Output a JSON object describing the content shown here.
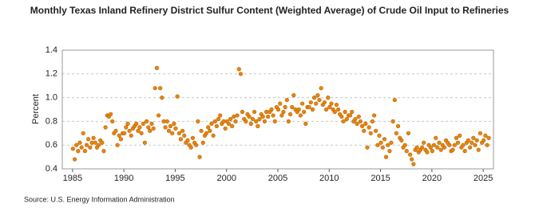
{
  "chart_data": {
    "type": "scatter",
    "title": "Monthly Texas Inland Refinery District Sulfur Content (Weighted Average) of Crude Oil Input to Refineries",
    "y_label": "Percent",
    "source": "Source: U.S. Energy Information Administration",
    "color": "#e8850c",
    "xlim": [
      1984,
      2026
    ],
    "xticks": [
      1985,
      1990,
      1995,
      2000,
      2005,
      2010,
      2015,
      2020,
      2025
    ],
    "ylim": [
      0.4,
      1.4
    ],
    "yticks": [
      0.4,
      0.6,
      0.8,
      {
        "value": 1,
        "label": "1.0"
      },
      1.2,
      1.4
    ],
    "grid": true,
    "x": [
      1985.04,
      1985.21,
      1985.38,
      1985.54,
      1985.71,
      1985.88,
      1986.04,
      1986.21,
      1986.38,
      1986.54,
      1986.71,
      1986.88,
      1987.04,
      1987.21,
      1987.38,
      1987.54,
      1987.71,
      1987.88,
      1988.04,
      1988.21,
      1988.38,
      1988.54,
      1988.71,
      1988.88,
      1989.04,
      1989.21,
      1989.38,
      1989.54,
      1989.71,
      1989.88,
      1990.04,
      1990.21,
      1990.38,
      1990.54,
      1990.71,
      1990.88,
      1991.04,
      1991.21,
      1991.38,
      1991.54,
      1991.71,
      1991.88,
      1992.04,
      1992.21,
      1992.38,
      1992.54,
      1992.71,
      1992.88,
      1993.04,
      1993.21,
      1993.38,
      1993.54,
      1993.71,
      1993.88,
      1994.04,
      1994.21,
      1994.38,
      1994.54,
      1994.71,
      1994.88,
      1995.04,
      1995.21,
      1995.38,
      1995.54,
      1995.71,
      1995.88,
      1996.04,
      1996.21,
      1996.38,
      1996.54,
      1996.71,
      1996.88,
      1997.04,
      1997.21,
      1997.38,
      1997.54,
      1997.71,
      1997.88,
      1998.04,
      1998.21,
      1998.38,
      1998.54,
      1998.71,
      1998.88,
      1999.04,
      1999.21,
      1999.38,
      1999.54,
      1999.71,
      1999.88,
      2000.04,
      2000.21,
      2000.38,
      2000.54,
      2000.71,
      2000.88,
      2001.04,
      2001.21,
      2001.38,
      2001.54,
      2001.71,
      2001.88,
      2002.04,
      2002.21,
      2002.38,
      2002.54,
      2002.71,
      2002.88,
      2003.04,
      2003.21,
      2003.38,
      2003.54,
      2003.71,
      2003.88,
      2004.04,
      2004.21,
      2004.38,
      2004.54,
      2004.71,
      2004.88,
      2005.04,
      2005.21,
      2005.38,
      2005.54,
      2005.71,
      2005.88,
      2006.04,
      2006.21,
      2006.38,
      2006.54,
      2006.71,
      2006.88,
      2007.04,
      2007.21,
      2007.38,
      2007.54,
      2007.71,
      2007.88,
      2008.04,
      2008.21,
      2008.38,
      2008.54,
      2008.71,
      2008.88,
      2009.04,
      2009.21,
      2009.38,
      2009.54,
      2009.71,
      2009.88,
      2010.04,
      2010.21,
      2010.38,
      2010.54,
      2010.71,
      2010.88,
      2011.04,
      2011.21,
      2011.38,
      2011.54,
      2011.71,
      2011.88,
      2012.04,
      2012.21,
      2012.38,
      2012.54,
      2012.71,
      2012.88,
      2013.04,
      2013.21,
      2013.38,
      2013.54,
      2013.71,
      2013.88,
      2014.04,
      2014.21,
      2014.38,
      2014.54,
      2014.71,
      2014.88,
      2015.04,
      2015.21,
      2015.38,
      2015.54,
      2015.71,
      2015.88,
      2016.04,
      2016.21,
      2016.38,
      2016.54,
      2016.71,
      2016.88,
      2017.04,
      2017.21,
      2017.38,
      2017.54,
      2017.71,
      2017.88,
      2018.04,
      2018.21,
      2018.38,
      2018.54,
      2018.71,
      2018.88,
      2019.04,
      2019.21,
      2019.38,
      2019.54,
      2019.71,
      2019.88,
      2020.04,
      2020.21,
      2020.38,
      2020.54,
      2020.71,
      2020.88,
      2021.04,
      2021.21,
      2021.38,
      2021.54,
      2021.71,
      2021.88,
      2022.04,
      2022.21,
      2022.38,
      2022.54,
      2022.71,
      2022.88,
      2023.04,
      2023.21,
      2023.38,
      2023.54,
      2023.71,
      2023.88,
      2024.04,
      2024.21,
      2024.38,
      2024.54,
      2024.71,
      2024.88,
      2025.04,
      2025.21,
      2025.38,
      2025.54
    ],
    "values": [
      0.57,
      0.48,
      0.6,
      0.55,
      0.62,
      0.58,
      0.7,
      0.55,
      0.6,
      0.65,
      0.58,
      0.62,
      0.66,
      0.62,
      0.58,
      0.6,
      0.64,
      0.62,
      0.55,
      0.75,
      0.85,
      0.84,
      0.86,
      0.8,
      0.7,
      0.72,
      0.6,
      0.68,
      0.65,
      0.7,
      0.7,
      0.75,
      0.78,
      0.72,
      0.68,
      0.74,
      0.76,
      0.78,
      0.72,
      0.75,
      0.7,
      0.78,
      0.62,
      0.8,
      0.75,
      0.72,
      0.78,
      0.74,
      1.08,
      1.25,
      0.85,
      1.08,
      1.0,
      0.8,
      0.75,
      0.8,
      0.72,
      0.76,
      0.7,
      0.78,
      0.74,
      1.01,
      0.7,
      0.65,
      0.72,
      0.68,
      0.62,
      0.64,
      0.6,
      0.58,
      0.66,
      0.62,
      0.6,
      0.8,
      0.5,
      0.72,
      0.62,
      0.68,
      0.7,
      0.75,
      0.72,
      0.78,
      0.68,
      0.8,
      0.76,
      0.82,
      0.85,
      0.78,
      0.8,
      0.74,
      0.8,
      0.78,
      0.82,
      0.76,
      0.84,
      0.8,
      0.85,
      1.24,
      1.2,
      0.88,
      0.82,
      0.8,
      0.86,
      0.84,
      0.78,
      0.82,
      0.88,
      0.8,
      0.76,
      0.82,
      0.86,
      0.84,
      0.8,
      0.88,
      0.84,
      0.88,
      0.9,
      0.85,
      0.8,
      0.92,
      0.9,
      0.95,
      0.85,
      0.88,
      0.92,
      0.98,
      0.8,
      0.86,
      0.92,
      1.02,
      0.9,
      0.88,
      0.9,
      0.85,
      0.95,
      0.88,
      0.78,
      0.92,
      0.92,
      0.96,
      0.9,
      1.0,
      0.95,
      1.02,
      0.98,
      1.08,
      0.94,
      0.96,
      0.9,
      1.0,
      0.92,
      0.95,
      0.9,
      0.88,
      0.94,
      0.9,
      0.86,
      0.84,
      0.8,
      0.88,
      0.82,
      0.85,
      0.85,
      0.88,
      0.8,
      0.82,
      0.78,
      0.84,
      0.8,
      0.76,
      0.72,
      0.78,
      0.58,
      0.75,
      0.7,
      0.8,
      0.85,
      0.72,
      0.6,
      0.68,
      0.62,
      0.58,
      0.65,
      0.5,
      0.6,
      0.55,
      0.62,
      0.8,
      0.98,
      0.7,
      0.76,
      0.66,
      0.64,
      0.58,
      0.6,
      0.55,
      0.7,
      0.52,
      0.48,
      0.44,
      0.56,
      0.58,
      0.54,
      0.56,
      0.58,
      0.62,
      0.56,
      0.54,
      0.6,
      0.58,
      0.55,
      0.6,
      0.66,
      0.58,
      0.62,
      0.56,
      0.6,
      0.58,
      0.64,
      0.62,
      0.6,
      0.55,
      0.56,
      0.6,
      0.66,
      0.62,
      0.68,
      0.58,
      0.6,
      0.55,
      0.62,
      0.64,
      0.58,
      0.62,
      0.66,
      0.6,
      0.64,
      0.56,
      0.7,
      0.62,
      0.64,
      0.68,
      0.6,
      0.66
    ]
  }
}
